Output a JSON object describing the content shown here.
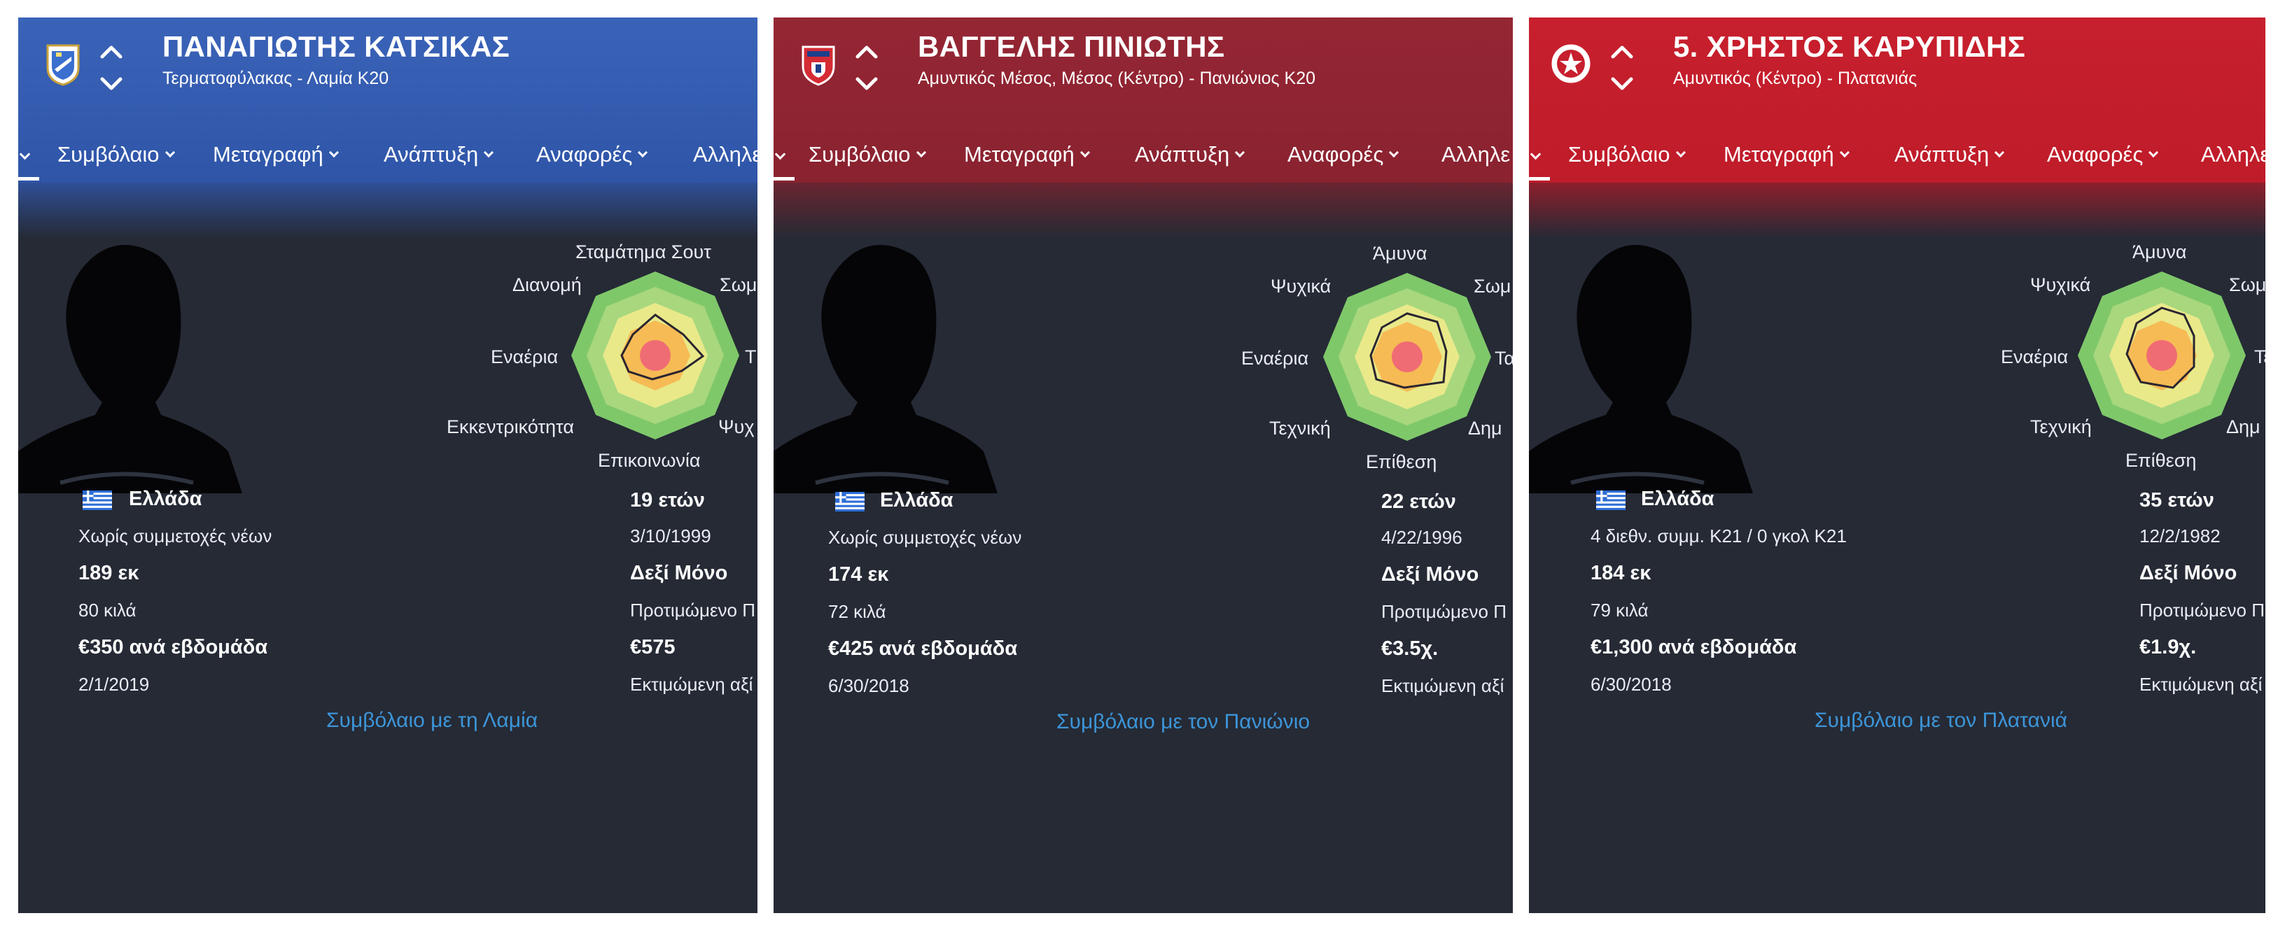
{
  "nav": {
    "items": [
      "Συμβόλαιο",
      "Μεταγραφή",
      "Ανάπτυξη",
      "Αναφορές",
      "Αλληλε"
    ]
  },
  "colors": {
    "panel_bg": "#252a35",
    "link": "#3d95d8",
    "lamia_header": "#3a63b8",
    "panionios_header": "#952634",
    "platanias_header": "#c71f2d"
  },
  "players": [
    {
      "name": "ΠΑΝΑΓΙΩΤΗΣ ΚΑΤΣΙΚΑΣ",
      "subtitle": "Τερματοφύλακας - Λαμία Κ20",
      "badge_icon": "lamia-crest-icon",
      "radar_labels": {
        "top": "Σταμάτημα Σουτ",
        "top_left": "Διανομή",
        "top_right": "Σωμ",
        "left": "Εναέρια",
        "right": "Τ",
        "bottom_left": "Εκκεντρικότητα",
        "bottom_right": "Ψυχ",
        "bottom": "Επικοινωνία"
      },
      "nationality": "Ελλάδα",
      "caps": "Χωρίς συμμετοχές νέων",
      "height": "189 εκ",
      "weight": "80 κιλά",
      "wage": "€350 ανά εβδομάδα",
      "contract_end": "2/1/2019",
      "age": "19 ετών",
      "birth_date": "3/10/1999",
      "foot": "Δεξί Μόνο",
      "foot_sub": "Προτιμώμενο Π",
      "value": "€575",
      "value_sub": "Εκτιμώμενη αξί",
      "contract_link": "Συμβόλαιο με τη Λαμία"
    },
    {
      "name": "ΒΑΓΓΕΛΗΣ ΠΙΝΙΩΤΗΣ",
      "subtitle": "Αμυντικός Μέσος, Μέσος (Κέντρο) - Πανιώνιος Κ20",
      "badge_icon": "panionios-crest-icon",
      "radar_labels": {
        "top": "Άμυνα",
        "top_left": "Ψυχικά",
        "top_right": "Σωμ",
        "left": "Εναέρια",
        "right": "Τα",
        "bottom_left": "Τεχνική",
        "bottom_right": "Δημ",
        "bottom": "Επίθεση"
      },
      "nationality": "Ελλάδα",
      "caps": "Χωρίς συμμετοχές νέων",
      "height": "174 εκ",
      "weight": "72 κιλά",
      "wage": "€425 ανά εβδομάδα",
      "contract_end": "6/30/2018",
      "age": "22 ετών",
      "birth_date": "4/22/1996",
      "foot": "Δεξί Μόνο",
      "foot_sub": "Προτιμώμενο Π",
      "value": "€3.5χ.",
      "value_sub": "Εκτιμώμενη αξί",
      "contract_link": "Συμβόλαιο με τον Πανιώνιο"
    },
    {
      "name": "5. ΧΡΗΣΤΟΣ ΚΑΡΥΠΙΔΗΣ",
      "subtitle": "Αμυντικός (Κέντρο) - Πλατανιάς",
      "badge_icon": "platanias-crest-icon",
      "radar_labels": {
        "top": "Άμυνα",
        "top_left": "Ψυχικά",
        "top_right": "Σωμ",
        "left": "Εναέρια",
        "right": "Τε",
        "bottom_left": "Τεχνική",
        "bottom_right": "Δημ",
        "bottom": "Επίθεση"
      },
      "nationality": "Ελλάδα",
      "caps": "4 διεθν. συμμ. Κ21 / 0 γκολ Κ21",
      "height": "184 εκ",
      "weight": "79 κιλά",
      "wage": "€1,300 ανά εβδομάδα",
      "contract_end": "6/30/2018",
      "age": "35 ετών",
      "birth_date": "12/2/1982",
      "foot": "Δεξί Μόνο",
      "foot_sub": "Προτιμώμενο Π",
      "value": "€1.9χ.",
      "value_sub": "Εκτιμώμενη αξί",
      "contract_link": "Συμβόλαιο με τον Πλατανιά"
    }
  ]
}
